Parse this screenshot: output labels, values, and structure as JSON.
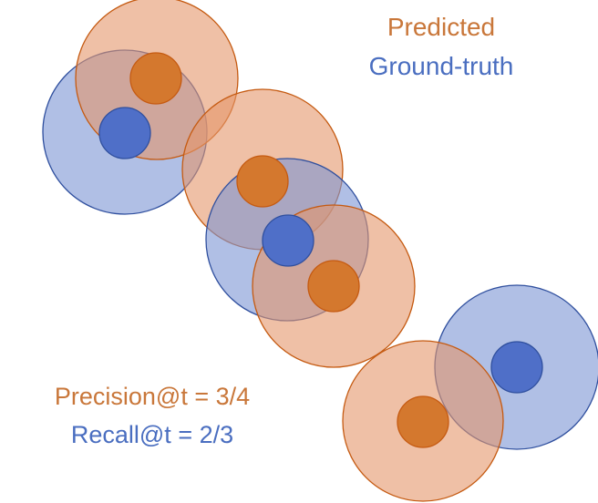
{
  "colors": {
    "predicted_stroke": "#c55a11",
    "predicted_fill": "#e5966a",
    "predicted_center": "#d4782e",
    "ground_truth_stroke": "#2f4f9e",
    "ground_truth_fill": "#7c94d4",
    "ground_truth_center": "#4f6fc8",
    "predicted_text": "#c9773a",
    "ground_truth_text": "#4a6ec0"
  },
  "legend": {
    "predicted_label": "Predicted",
    "ground_truth_label": "Ground-truth"
  },
  "metrics": {
    "precision_text": "Precision@t = 3/4",
    "recall_text": "Recall@t = 2/3"
  }
}
